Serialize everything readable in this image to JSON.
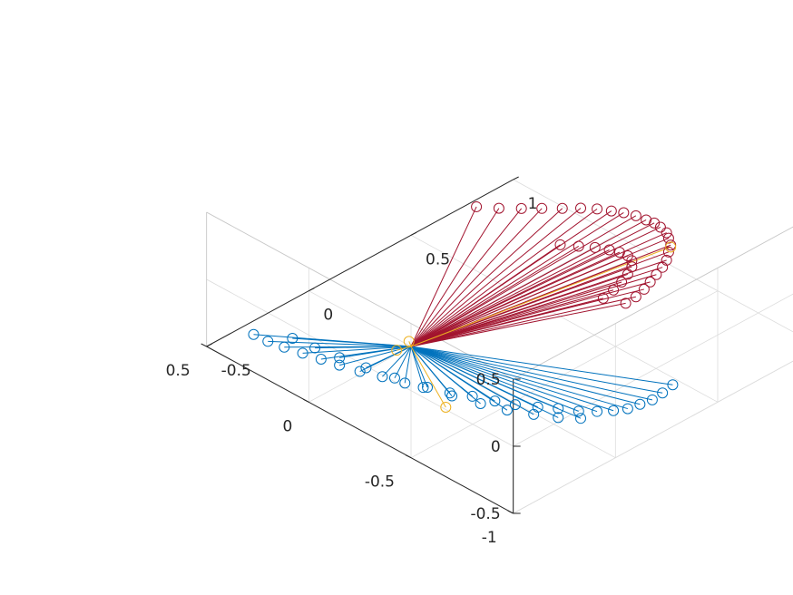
{
  "chart_data": {
    "type": "3d-stem",
    "title": "",
    "xlabel": "",
    "ylabel": "",
    "zlabel": "",
    "grid": true,
    "xlim": [
      -1,
      0.5
    ],
    "ylim": [
      -0.5,
      1
    ],
    "zlim": [
      -0.5,
      0.5
    ],
    "x_ticks": [
      "-1",
      "-0.5",
      "0",
      "0.5"
    ],
    "y_ticks": [
      "-0.5",
      "0",
      "0.5",
      "1"
    ],
    "z_ticks": [
      "-0.5",
      "0",
      "0.5"
    ],
    "origin": [
      0,
      0,
      -0.5
    ],
    "colors": {
      "blue": "#0072bd",
      "red": "#a2142f",
      "orange": "#edb120"
    },
    "series": [
      {
        "color": "blue",
        "ends": [
          [
            -0.14,
            -0.91,
            0.46
          ],
          [
            -0.2,
            -0.9,
            0.45
          ],
          [
            -0.26,
            -0.88,
            0.44
          ],
          [
            -0.32,
            -0.85,
            0.42
          ],
          [
            -0.38,
            -0.82,
            0.4
          ],
          [
            -0.44,
            -0.79,
            0.38
          ],
          [
            -0.5,
            -0.75,
            0.35
          ],
          [
            -0.56,
            -0.7,
            0.32
          ],
          [
            -0.62,
            -0.65,
            0.28
          ],
          [
            -0.67,
            -0.59,
            0.24
          ],
          [
            -0.72,
            -0.53,
            0.19
          ],
          [
            -0.76,
            -0.46,
            0.14
          ],
          [
            -0.8,
            -0.39,
            0.08
          ],
          [
            -0.83,
            -0.32,
            0.02
          ],
          [
            -0.86,
            -0.24,
            -0.04
          ],
          [
            -0.88,
            -0.16,
            -0.1
          ],
          [
            -0.9,
            -0.08,
            -0.17
          ],
          [
            -0.91,
            0.0,
            -0.23
          ],
          [
            -0.91,
            0.08,
            -0.29
          ],
          [
            -0.9,
            0.16,
            -0.35
          ],
          [
            -0.88,
            0.24,
            -0.4
          ],
          [
            -0.86,
            0.32,
            -0.45
          ],
          [
            -0.83,
            0.4,
            -0.49
          ],
          [
            -0.8,
            0.48,
            -0.52
          ],
          [
            -0.18,
            -0.76,
            0.34
          ],
          [
            -0.26,
            -0.73,
            0.31
          ],
          [
            -0.34,
            -0.69,
            0.27
          ],
          [
            -0.42,
            -0.64,
            0.22
          ],
          [
            -0.5,
            -0.58,
            0.16
          ],
          [
            -0.57,
            -0.51,
            0.09
          ],
          [
            -0.63,
            -0.43,
            0.01
          ],
          [
            -0.68,
            -0.34,
            -0.08
          ],
          [
            -0.72,
            -0.25,
            -0.17
          ],
          [
            -0.75,
            -0.15,
            -0.26
          ],
          [
            -0.77,
            -0.05,
            -0.35
          ],
          [
            -0.78,
            0.05,
            -0.43
          ]
        ]
      },
      {
        "color": "red",
        "ends": [
          [
            -0.91,
            0.14,
            0.46
          ],
          [
            -0.9,
            0.2,
            0.45
          ],
          [
            -0.88,
            0.26,
            0.44
          ],
          [
            -0.85,
            0.32,
            0.42
          ],
          [
            -0.82,
            0.38,
            0.4
          ],
          [
            -0.79,
            0.44,
            0.38
          ],
          [
            -0.75,
            0.5,
            0.35
          ],
          [
            -0.7,
            0.56,
            0.32
          ],
          [
            -0.65,
            0.62,
            0.28
          ],
          [
            -0.59,
            0.67,
            0.24
          ],
          [
            -0.53,
            0.72,
            0.19
          ],
          [
            -0.46,
            0.76,
            0.14
          ],
          [
            -0.39,
            0.8,
            0.08
          ],
          [
            -0.32,
            0.83,
            0.02
          ],
          [
            -0.24,
            0.86,
            -0.04
          ],
          [
            -0.16,
            0.88,
            -0.1
          ],
          [
            -0.08,
            0.9,
            -0.17
          ],
          [
            0.0,
            0.91,
            -0.23
          ],
          [
            0.08,
            0.91,
            -0.29
          ],
          [
            0.16,
            0.9,
            -0.35
          ],
          [
            0.24,
            0.88,
            -0.4
          ],
          [
            0.32,
            0.86,
            -0.45
          ],
          [
            0.4,
            0.83,
            -0.49
          ],
          [
            0.48,
            0.8,
            -0.52
          ],
          [
            -0.76,
            0.18,
            0.34
          ],
          [
            -0.73,
            0.26,
            0.31
          ],
          [
            -0.69,
            0.34,
            0.27
          ],
          [
            -0.64,
            0.42,
            0.22
          ],
          [
            -0.58,
            0.5,
            0.16
          ],
          [
            -0.51,
            0.57,
            0.09
          ],
          [
            -0.43,
            0.63,
            0.01
          ],
          [
            -0.34,
            0.68,
            -0.08
          ],
          [
            -0.25,
            0.72,
            -0.17
          ],
          [
            -0.15,
            0.75,
            -0.26
          ],
          [
            -0.05,
            0.77,
            -0.35
          ],
          [
            0.05,
            0.78,
            -0.43
          ]
        ]
      },
      {
        "color": "orange",
        "ends": [
          [
            -0.72,
            -0.55,
            0.1
          ],
          [
            -0.55,
            0.72,
            0.1
          ],
          [
            0.03,
            -0.04,
            -0.52
          ],
          [
            0.04,
            0.03,
            -0.52
          ]
        ]
      }
    ]
  }
}
